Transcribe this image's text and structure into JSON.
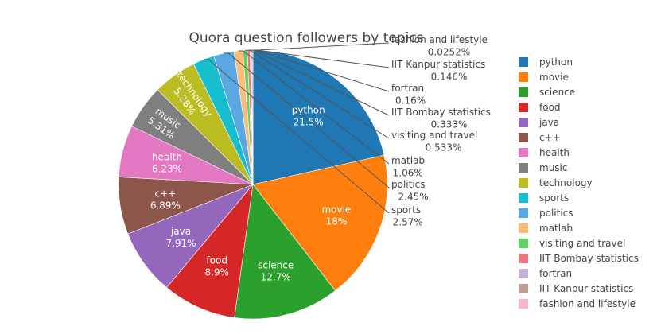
{
  "chart_data": {
    "type": "pie",
    "title": "Quora question followers by topics",
    "legend_position": "right",
    "slices": [
      {
        "label": "python",
        "value": 21.5,
        "pct_text": "21.5%",
        "color": "#1f77b4"
      },
      {
        "label": "movie",
        "value": 18,
        "pct_text": "18%",
        "color": "#ff7f0e"
      },
      {
        "label": "science",
        "value": 12.7,
        "pct_text": "12.7%",
        "color": "#2ca02c"
      },
      {
        "label": "food",
        "value": 8.9,
        "pct_text": "8.9%",
        "color": "#d62728"
      },
      {
        "label": "java",
        "value": 7.91,
        "pct_text": "7.91%",
        "color": "#9467bd"
      },
      {
        "label": "c++",
        "value": 6.89,
        "pct_text": "6.89%",
        "color": "#8c564b"
      },
      {
        "label": "health",
        "value": 6.23,
        "pct_text": "6.23%",
        "color": "#e377c2"
      },
      {
        "label": "music",
        "value": 5.31,
        "pct_text": "5.31%",
        "color": "#7f7f7f"
      },
      {
        "label": "technology",
        "value": 5.28,
        "pct_text": "5.28%",
        "color": "#bcbd22"
      },
      {
        "label": "sports",
        "value": 2.57,
        "pct_text": "2.57%",
        "color": "#17becf"
      },
      {
        "label": "politics",
        "value": 2.45,
        "pct_text": "2.45%",
        "color": "#5aa8e1"
      },
      {
        "label": "matlab",
        "value": 1.06,
        "pct_text": "1.06%",
        "color": "#ffbb78"
      },
      {
        "label": "visiting and travel",
        "value": 0.533,
        "pct_text": "0.533%",
        "color": "#5fd35f"
      },
      {
        "label": "IIT Bombay statistics",
        "value": 0.333,
        "pct_text": "0.333%",
        "color": "#e8787a"
      },
      {
        "label": "fortran",
        "value": 0.16,
        "pct_text": "0.16%",
        "color": "#c5b0d5"
      },
      {
        "label": "IIT Kanpur statistics",
        "value": 0.146,
        "pct_text": "0.146%",
        "color": "#c49c94"
      },
      {
        "label": "fashion and lifestyle",
        "value": 0.0252,
        "pct_text": "0.0252%",
        "color": "#f7b6d2"
      }
    ]
  }
}
